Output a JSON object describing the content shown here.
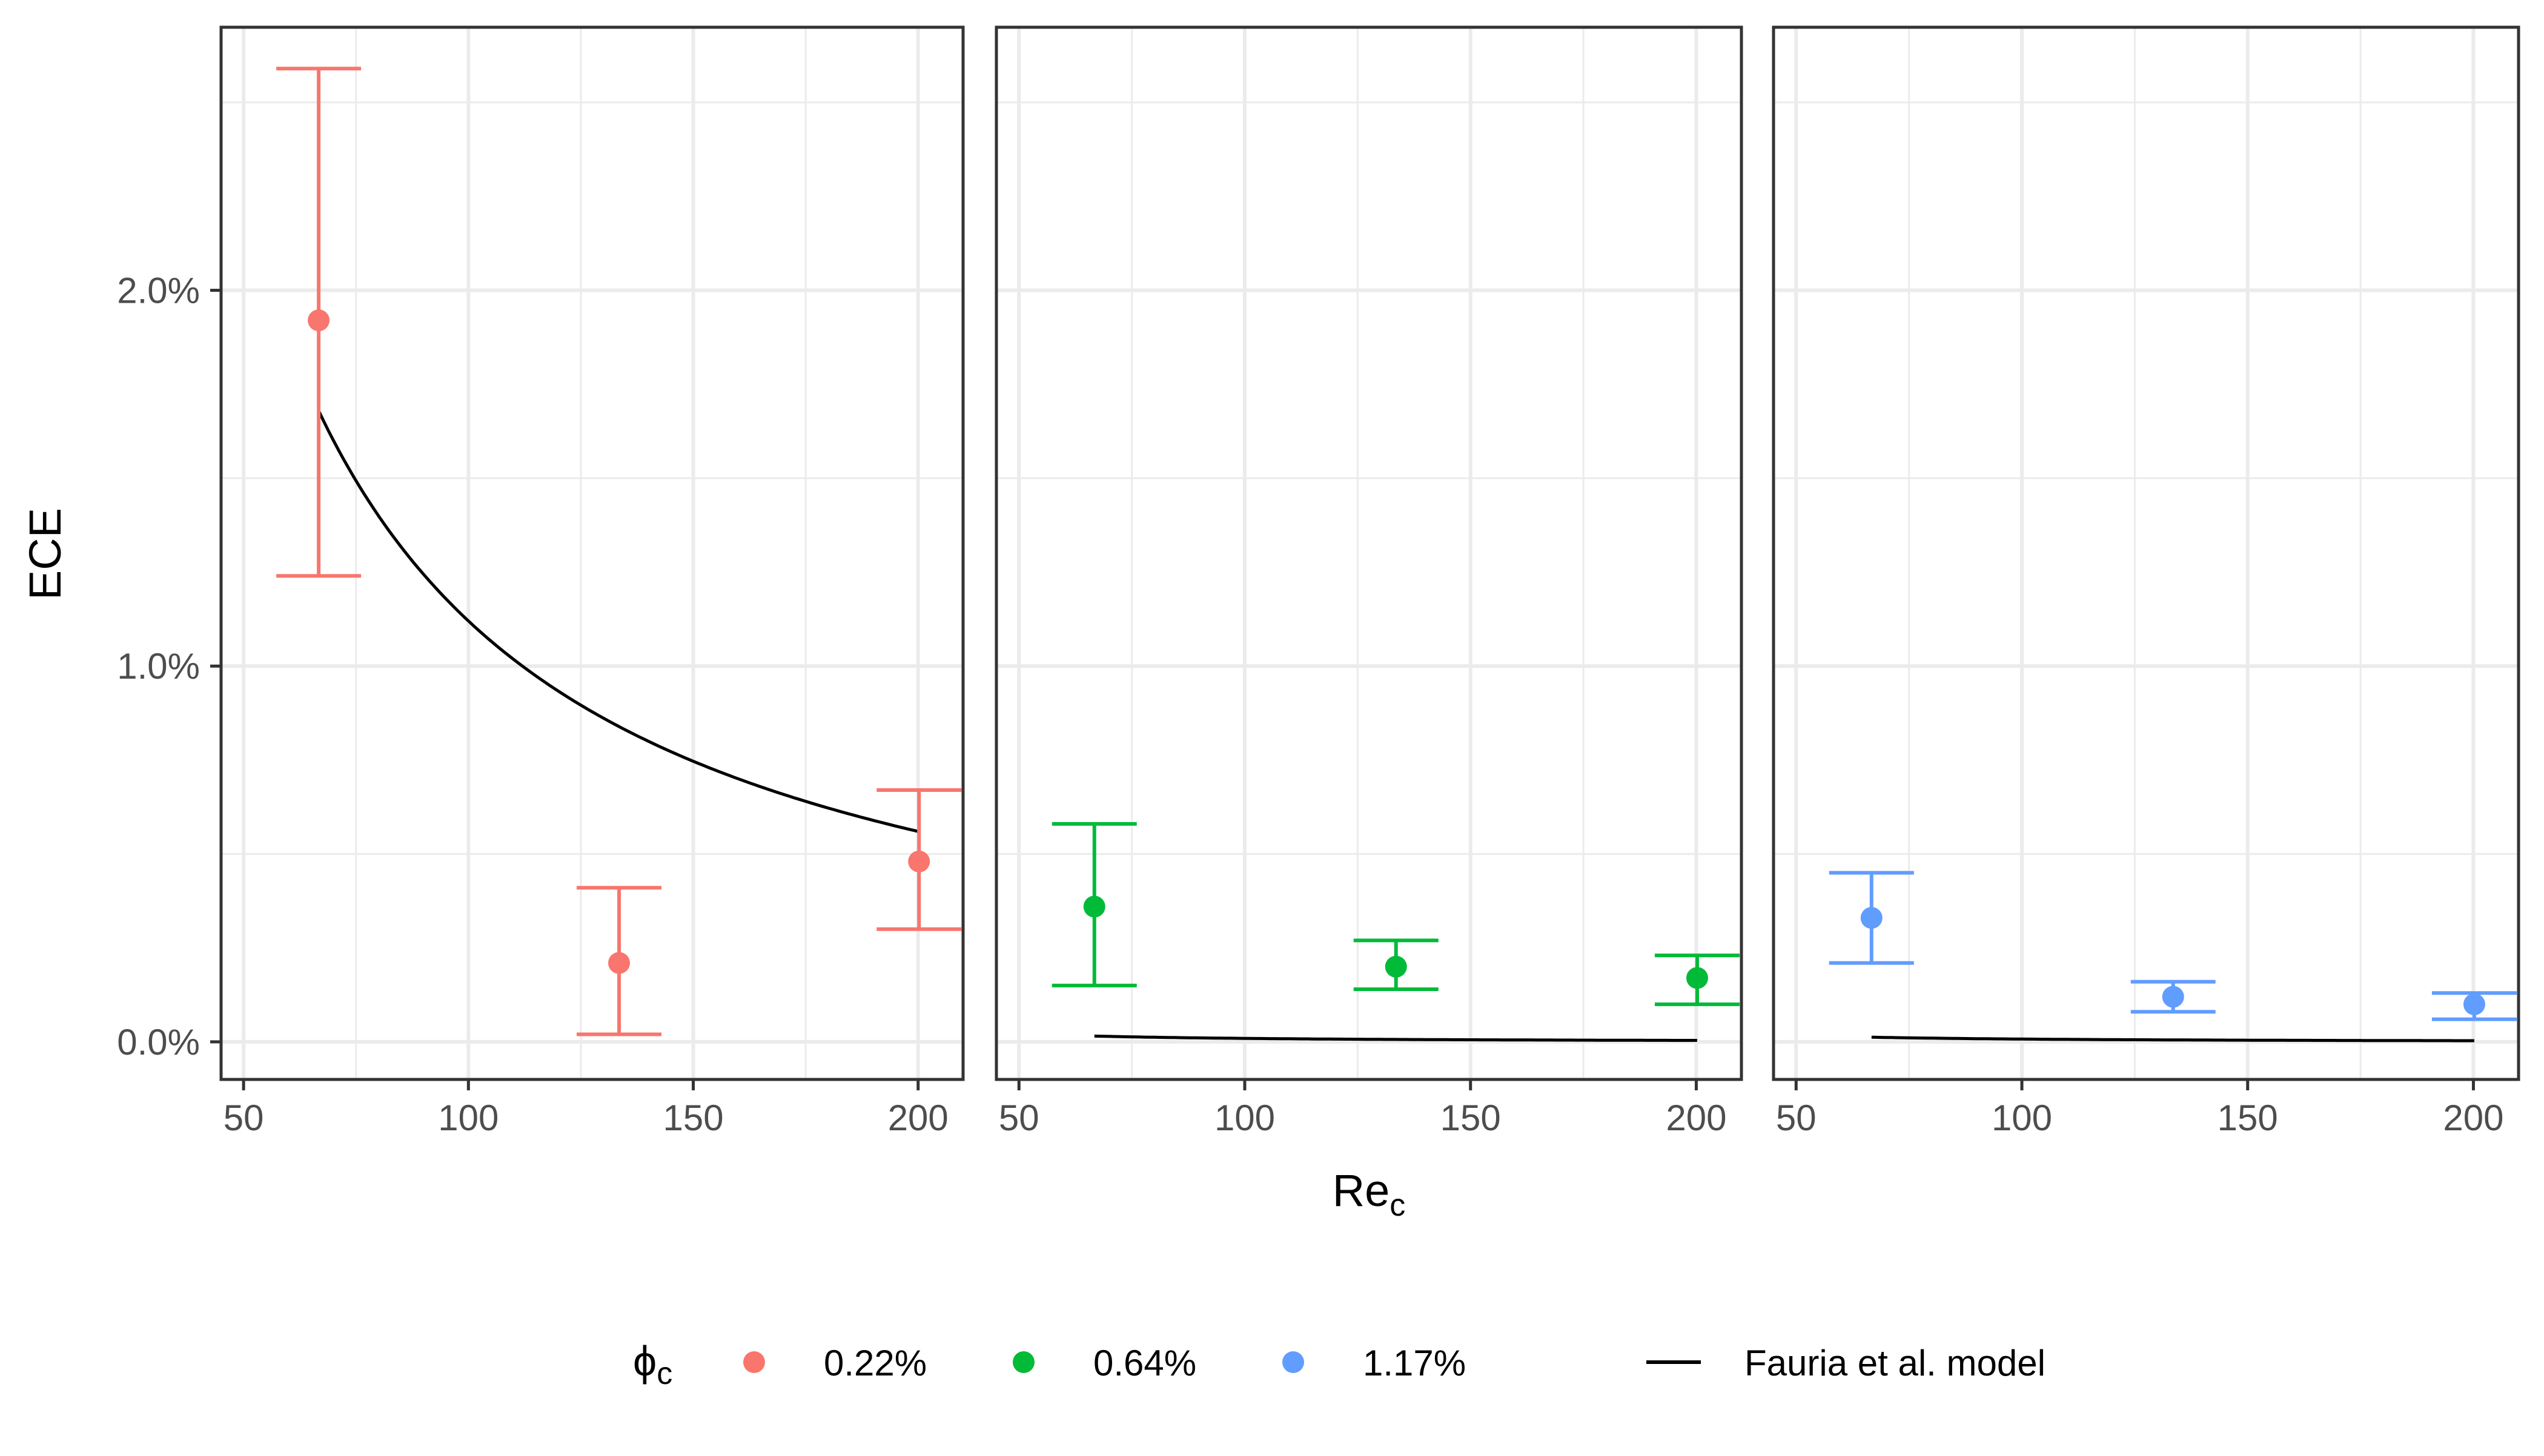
{
  "chart_data": {
    "type": "scatter",
    "ylabel": "ECE",
    "xlabel_main": "Re",
    "xlabel_sub": "c",
    "xlim": [
      45,
      210
    ],
    "ylim": [
      -0.1,
      2.7
    ],
    "x_ticks": [
      50,
      100,
      150,
      200
    ],
    "x_tick_labels": [
      "50",
      "100",
      "150",
      "200"
    ],
    "y_ticks": [
      0.0,
      1.0,
      2.0
    ],
    "y_tick_labels": [
      "0.0%",
      "1.0%",
      "2.0%"
    ],
    "y_minor_ticks": [
      0.5,
      1.5,
      2.5
    ],
    "legend": {
      "title_main": "ϕ",
      "title_sub": "c",
      "placement": "bottom",
      "entries": [
        {
          "label": "0.22%",
          "color": "#F8766D"
        },
        {
          "label": "0.64%",
          "color": "#00BA38"
        },
        {
          "label": "1.17%",
          "color": "#619CFF"
        }
      ],
      "line_label": "Fauria et al. model"
    },
    "panels": [
      {
        "series": "0.22%",
        "color": "#F8766D",
        "points": [
          {
            "x": 66.7,
            "y": 1.92,
            "ymin": 1.24,
            "ymax": 2.59
          },
          {
            "x": 133.5,
            "y": 0.21,
            "ymin": 0.02,
            "ymax": 0.41
          },
          {
            "x": 200.2,
            "y": 0.48,
            "ymin": 0.3,
            "ymax": 0.67
          }
        ],
        "model": {
          "k": 112,
          "exponent": 1.0,
          "x_from": 66.7,
          "x_to": 200.2
        }
      },
      {
        "series": "0.64%",
        "color": "#00BA38",
        "points": [
          {
            "x": 66.7,
            "y": 0.36,
            "ymin": 0.15,
            "ymax": 0.58
          },
          {
            "x": 133.5,
            "y": 0.2,
            "ymin": 0.14,
            "ymax": 0.27
          },
          {
            "x": 200.2,
            "y": 0.17,
            "ymin": 0.1,
            "ymax": 0.23
          }
        ],
        "model": {
          "k": 3.06,
          "exponent": 1.26,
          "x_from": 66.7,
          "x_to": 200.2
        }
      },
      {
        "series": "1.17%",
        "color": "#619CFF",
        "points": [
          {
            "x": 66.7,
            "y": 0.33,
            "ymin": 0.21,
            "ymax": 0.45
          },
          {
            "x": 133.5,
            "y": 0.12,
            "ymin": 0.08,
            "ymax": 0.16
          },
          {
            "x": 200.2,
            "y": 0.1,
            "ymin": 0.06,
            "ymax": 0.13
          }
        ],
        "model": {
          "k": 2.46,
          "exponent": 1.26,
          "x_from": 66.7,
          "x_to": 200.2
        }
      }
    ]
  }
}
